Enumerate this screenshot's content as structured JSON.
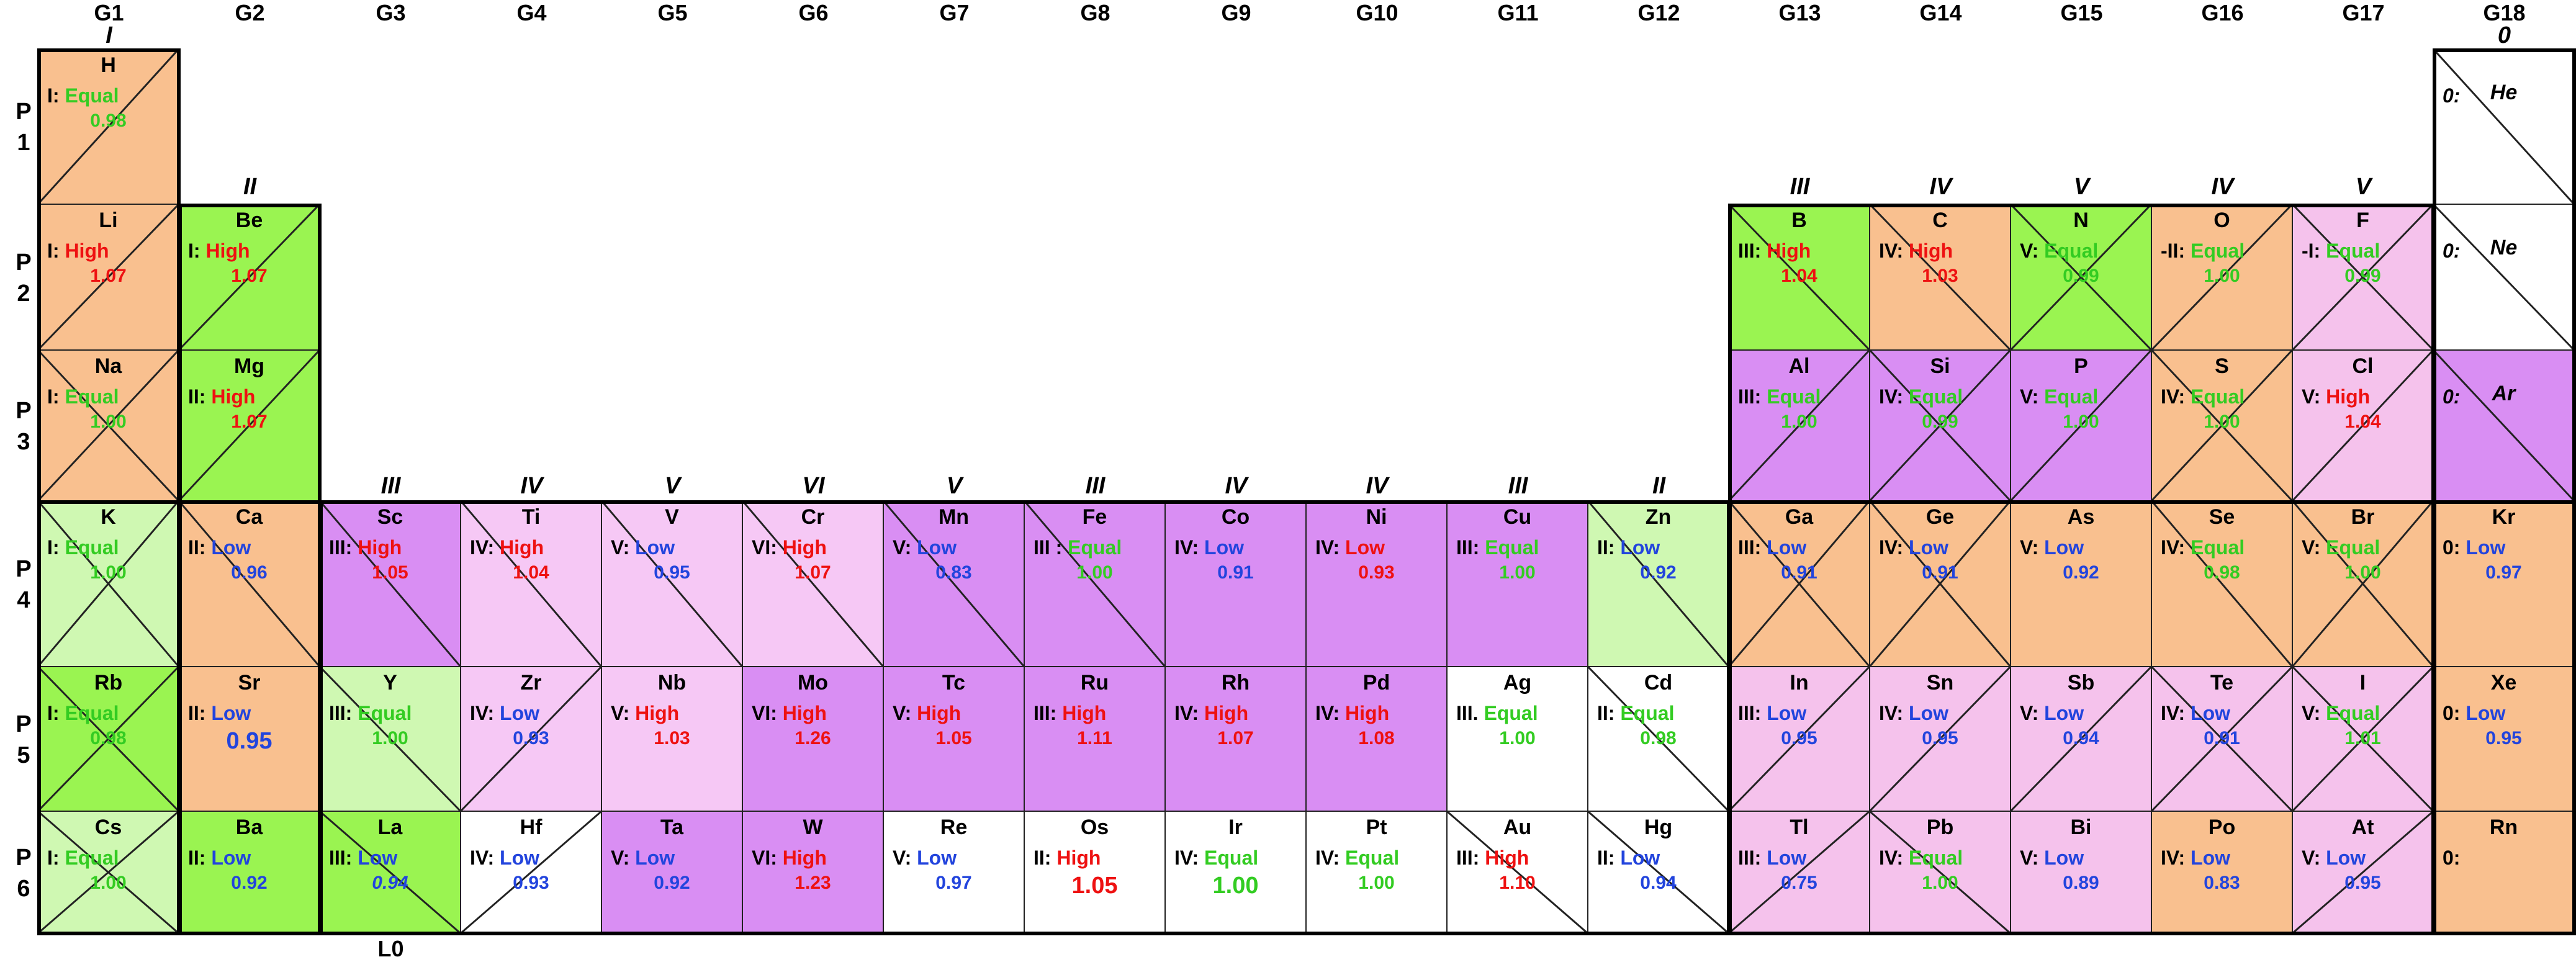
{
  "groups": [
    "G1",
    "G2",
    "G3",
    "G4",
    "G5",
    "G6",
    "G7",
    "G8",
    "G9",
    "G10",
    "G11",
    "G12",
    "G13",
    "G14",
    "G15",
    "G16",
    "G17",
    "G18"
  ],
  "group_numerals": [
    {
      "text": "I",
      "col": 0,
      "row": "top"
    },
    {
      "text": "II",
      "col": 1,
      "row": "p1"
    },
    {
      "text": "III",
      "col": 2,
      "row": "p3"
    },
    {
      "text": "IV",
      "col": 3,
      "row": "p3"
    },
    {
      "text": "V",
      "col": 4,
      "row": "p3"
    },
    {
      "text": "VI",
      "col": 5,
      "row": "p3"
    },
    {
      "text": "V",
      "col": 6,
      "row": "p3"
    },
    {
      "text": "III",
      "col": 7,
      "row": "p3"
    },
    {
      "text": "IV",
      "col": 8,
      "row": "p3"
    },
    {
      "text": "IV",
      "col": 9,
      "row": "p3"
    },
    {
      "text": "III",
      "col": 10,
      "row": "p3"
    },
    {
      "text": "II",
      "col": 11,
      "row": "p3"
    },
    {
      "text": "III",
      "col": 12,
      "row": "p1"
    },
    {
      "text": "IV",
      "col": 13,
      "row": "p1"
    },
    {
      "text": "V",
      "col": 14,
      "row": "p1"
    },
    {
      "text": "IV",
      "col": 15,
      "row": "p1"
    },
    {
      "text": "V",
      "col": 16,
      "row": "p1"
    },
    {
      "text": "0",
      "col": 17,
      "row": "top"
    }
  ],
  "periods": [
    {
      "label": [
        "P",
        "1"
      ]
    },
    {
      "label": [
        "P",
        "2"
      ]
    },
    {
      "label": [
        "P",
        "3"
      ]
    },
    {
      "label": [
        "P",
        "4"
      ]
    },
    {
      "label": [
        "P",
        "5"
      ]
    },
    {
      "label": [
        "P",
        "6"
      ]
    }
  ],
  "footer_label": "L0",
  "colors": {
    "orange": "#f9c08f",
    "green": "#9af451",
    "lightgreen": "#cff8b2",
    "purple": "#d98ef3",
    "pink": "#f5c2ec",
    "lightpink": "#f6c8f5",
    "white": "#ffffff",
    "high": "#ee1111",
    "low": "#2244dd",
    "equal": "#33cc22"
  },
  "elements": [
    {
      "sym": "H",
      "p": 0,
      "g": 0,
      "ox": "I:",
      "tag": "Equal",
      "val": "0.98",
      "bg": "orange",
      "x": "nw"
    },
    {
      "sym": "He",
      "p": 0,
      "g": 17,
      "ox": "0:",
      "tag": "",
      "val": "",
      "bg": "white",
      "x": "ne",
      "noble": true
    },
    {
      "sym": "Li",
      "p": 1,
      "g": 0,
      "ox": "I:",
      "tag": "High",
      "val": "1.07",
      "bg": "orange",
      "x": "nw"
    },
    {
      "sym": "Be",
      "p": 1,
      "g": 1,
      "ox": "I:",
      "tag": "High",
      "val": "1.07",
      "bg": "green",
      "x": "nw"
    },
    {
      "sym": "B",
      "p": 1,
      "g": 12,
      "ox": "III:",
      "tag": "High",
      "val": "1.04",
      "bg": "green",
      "x": "ne"
    },
    {
      "sym": "C",
      "p": 1,
      "g": 13,
      "ox": "IV:",
      "tag": "High",
      "val": "1.03",
      "bg": "orange",
      "x": "ne"
    },
    {
      "sym": "N",
      "p": 1,
      "g": 14,
      "ox": "V:",
      "tag": "Equal",
      "val": "0.99",
      "bg": "green",
      "x": "both"
    },
    {
      "sym": "O",
      "p": 1,
      "g": 15,
      "ox": "-II:",
      "tag": "Equal",
      "val": "1.00",
      "bg": "orange",
      "x": "nw"
    },
    {
      "sym": "F",
      "p": 1,
      "g": 16,
      "ox": "-I:",
      "tag": "Equal",
      "val": "0.99",
      "bg": "pink",
      "x": "both"
    },
    {
      "sym": "Ne",
      "p": 1,
      "g": 17,
      "ox": "0:",
      "tag": "",
      "val": "",
      "bg": "white",
      "x": "ne",
      "noble": true
    },
    {
      "sym": "Na",
      "p": 2,
      "g": 0,
      "ox": "I:",
      "tag": "Equal",
      "val": "1.00",
      "bg": "orange",
      "x": "both"
    },
    {
      "sym": "Mg",
      "p": 2,
      "g": 1,
      "ox": "II:",
      "tag": "High",
      "val": "1.07",
      "bg": "green",
      "x": "nw"
    },
    {
      "sym": "Al",
      "p": 2,
      "g": 12,
      "ox": "III:",
      "tag": "Equal",
      "val": "1.00",
      "bg": "purple",
      "x": "nw"
    },
    {
      "sym": "Si",
      "p": 2,
      "g": 13,
      "ox": "IV:",
      "tag": "Equal",
      "val": "0.99",
      "bg": "purple",
      "x": "both"
    },
    {
      "sym": "P",
      "p": 2,
      "g": 14,
      "ox": "V:",
      "tag": "Equal",
      "val": "1.00",
      "bg": "purple",
      "x": "nw"
    },
    {
      "sym": "S",
      "p": 2,
      "g": 15,
      "ox": "IV:",
      "tag": "Equal",
      "val": "1.00",
      "bg": "orange",
      "x": "both"
    },
    {
      "sym": "Cl",
      "p": 2,
      "g": 16,
      "ox": "V:",
      "tag": "High",
      "val": "1.04",
      "bg": "pink",
      "x": "nw"
    },
    {
      "sym": "Ar",
      "p": 2,
      "g": 17,
      "ox": "0:",
      "tag": "",
      "val": "",
      "bg": "purple",
      "x": "ne",
      "noble": true
    },
    {
      "sym": "K",
      "p": 3,
      "g": 0,
      "ox": "I:",
      "tag": "Equal",
      "val": "1.00",
      "bg": "lightgreen",
      "x": "both"
    },
    {
      "sym": "Ca",
      "p": 3,
      "g": 1,
      "ox": "II:",
      "tag": "Low",
      "val": "0.96",
      "bg": "orange",
      "x": "ne"
    },
    {
      "sym": "Sc",
      "p": 3,
      "g": 2,
      "ox": "III:",
      "tag": "High",
      "val": "1.05",
      "bg": "purple",
      "x": "ne"
    },
    {
      "sym": "Ti",
      "p": 3,
      "g": 3,
      "ox": "IV:",
      "tag": "High",
      "val": "1.04",
      "bg": "lightpink",
      "x": "ne"
    },
    {
      "sym": "V",
      "p": 3,
      "g": 4,
      "ox": "V:",
      "tag": "Low",
      "val": "0.95",
      "bg": "lightpink",
      "x": "ne"
    },
    {
      "sym": "Cr",
      "p": 3,
      "g": 5,
      "ox": "VI:",
      "tag": "High",
      "val": "1.07",
      "bg": "lightpink",
      "x": "ne"
    },
    {
      "sym": "Mn",
      "p": 3,
      "g": 6,
      "ox": "V:",
      "tag": "Low",
      "val": "0.83",
      "bg": "purple",
      "x": "ne"
    },
    {
      "sym": "Fe",
      "p": 3,
      "g": 7,
      "ox": "III :",
      "tag": "Equal",
      "val": "1.00",
      "bg": "purple",
      "x": "ne"
    },
    {
      "sym": "Co",
      "p": 3,
      "g": 8,
      "ox": "IV:",
      "tag": "Low",
      "val": "0.91",
      "bg": "purple",
      "x": ""
    },
    {
      "sym": "Ni",
      "p": 3,
      "g": 9,
      "ox": "IV:",
      "tag": "Low",
      "val": "0.93",
      "bg": "purple",
      "x": "",
      "lowred": true
    },
    {
      "sym": "Cu",
      "p": 3,
      "g": 10,
      "ox": "III:",
      "tag": "Equal",
      "val": "1.00",
      "bg": "purple",
      "x": ""
    },
    {
      "sym": "Zn",
      "p": 3,
      "g": 11,
      "ox": "II:",
      "tag": "Low",
      "val": "0.92",
      "bg": "lightgreen",
      "x": "ne"
    },
    {
      "sym": "Ga",
      "p": 3,
      "g": 12,
      "ox": "III:",
      "tag": "Low",
      "val": "0.91",
      "bg": "orange",
      "x": "both"
    },
    {
      "sym": "Ge",
      "p": 3,
      "g": 13,
      "ox": "IV:",
      "tag": "Low",
      "val": "0.91",
      "bg": "orange",
      "x": "both"
    },
    {
      "sym": "As",
      "p": 3,
      "g": 14,
      "ox": "V:",
      "tag": "Low",
      "val": "0.92",
      "bg": "orange",
      "x": ""
    },
    {
      "sym": "Se",
      "p": 3,
      "g": 15,
      "ox": "IV:",
      "tag": "Equal",
      "val": "0.98",
      "bg": "orange",
      "x": "ne"
    },
    {
      "sym": "Br",
      "p": 3,
      "g": 16,
      "ox": "V:",
      "tag": "Equal",
      "val": "1.00",
      "bg": "orange",
      "x": "both"
    },
    {
      "sym": "Kr",
      "p": 3,
      "g": 17,
      "ox": "0:",
      "tag": "Low",
      "val": "0.97",
      "bg": "orange",
      "x": ""
    },
    {
      "sym": "Rb",
      "p": 4,
      "g": 0,
      "ox": "I:",
      "tag": "Equal",
      "val": "0.98",
      "bg": "green",
      "x": "both"
    },
    {
      "sym": "Sr",
      "p": 4,
      "g": 1,
      "ox": "II:",
      "tag": "Low",
      "val": "0.95",
      "bg": "orange",
      "x": "",
      "big": true
    },
    {
      "sym": "Y",
      "p": 4,
      "g": 2,
      "ox": "III:",
      "tag": "Equal",
      "val": "1.00",
      "bg": "lightgreen",
      "x": "ne"
    },
    {
      "sym": "Zr",
      "p": 4,
      "g": 3,
      "ox": "IV:",
      "tag": "Low",
      "val": "0.93",
      "bg": "lightpink",
      "x": "nw"
    },
    {
      "sym": "Nb",
      "p": 4,
      "g": 4,
      "ox": "V:",
      "tag": "High",
      "val": "1.03",
      "bg": "lightpink",
      "x": ""
    },
    {
      "sym": "Mo",
      "p": 4,
      "g": 5,
      "ox": "VI:",
      "tag": "High",
      "val": "1.26",
      "bg": "purple",
      "x": ""
    },
    {
      "sym": "Tc",
      "p": 4,
      "g": 6,
      "ox": "V:",
      "tag": "High",
      "val": "1.05",
      "bg": "purple",
      "x": ""
    },
    {
      "sym": "Ru",
      "p": 4,
      "g": 7,
      "ox": "III:",
      "tag": "High",
      "val": "1.11",
      "bg": "purple",
      "x": ""
    },
    {
      "sym": "Rh",
      "p": 4,
      "g": 8,
      "ox": "IV:",
      "tag": "High",
      "val": "1.07",
      "bg": "purple",
      "x": ""
    },
    {
      "sym": "Pd",
      "p": 4,
      "g": 9,
      "ox": "IV:",
      "tag": "High",
      "val": "1.08",
      "bg": "purple",
      "x": ""
    },
    {
      "sym": "Ag",
      "p": 4,
      "g": 10,
      "ox": "III.",
      "tag": "Equal",
      "val": "1.00",
      "bg": "white",
      "x": ""
    },
    {
      "sym": "Cd",
      "p": 4,
      "g": 11,
      "ox": "II:",
      "tag": "Equal",
      "val": "0.98",
      "bg": "white",
      "x": "ne"
    },
    {
      "sym": "In",
      "p": 4,
      "g": 12,
      "ox": "III:",
      "tag": "Low",
      "val": "0.95",
      "bg": "pink",
      "x": "nw"
    },
    {
      "sym": "Sn",
      "p": 4,
      "g": 13,
      "ox": "IV:",
      "tag": "Low",
      "val": "0.95",
      "bg": "pink",
      "x": "nw"
    },
    {
      "sym": "Sb",
      "p": 4,
      "g": 14,
      "ox": "V:",
      "tag": "Low",
      "val": "0.94",
      "bg": "pink",
      "x": "nw"
    },
    {
      "sym": "Te",
      "p": 4,
      "g": 15,
      "ox": "IV:",
      "tag": "Low",
      "val": "0.91",
      "bg": "pink",
      "x": "both"
    },
    {
      "sym": "I",
      "p": 4,
      "g": 16,
      "ox": "V:",
      "tag": "Equal",
      "val": "1.01",
      "bg": "pink",
      "x": "both"
    },
    {
      "sym": "Xe",
      "p": 4,
      "g": 17,
      "ox": "0:",
      "tag": "Low",
      "val": "0.95",
      "bg": "orange",
      "x": ""
    },
    {
      "sym": "Cs",
      "p": 5,
      "g": 0,
      "ox": "I:",
      "tag": "Equal",
      "val": "1.00",
      "bg": "lightgreen",
      "x": "both"
    },
    {
      "sym": "Ba",
      "p": 5,
      "g": 1,
      "ox": "II:",
      "tag": "Low",
      "val": "0.92",
      "bg": "green",
      "x": ""
    },
    {
      "sym": "La",
      "p": 5,
      "g": 2,
      "ox": "III:",
      "tag": "Low",
      "val": "0.94",
      "bg": "green",
      "x": "ne",
      "italicval": true
    },
    {
      "sym": "Hf",
      "p": 5,
      "g": 3,
      "ox": "IV:",
      "tag": "Low",
      "val": "0.93",
      "bg": "white",
      "x": "nw"
    },
    {
      "sym": "Ta",
      "p": 5,
      "g": 4,
      "ox": "V:",
      "tag": "Low",
      "val": "0.92",
      "bg": "purple",
      "x": ""
    },
    {
      "sym": "W",
      "p": 5,
      "g": 5,
      "ox": "VI:",
      "tag": "High",
      "val": "1.23",
      "bg": "purple",
      "x": ""
    },
    {
      "sym": "Re",
      "p": 5,
      "g": 6,
      "ox": "V:",
      "tag": "Low",
      "val": "0.97",
      "bg": "white",
      "x": ""
    },
    {
      "sym": "Os",
      "p": 5,
      "g": 7,
      "ox": "II:",
      "tag": "High",
      "val": "1.05",
      "bg": "white",
      "x": "",
      "big": true
    },
    {
      "sym": "Ir",
      "p": 5,
      "g": 8,
      "ox": "IV:",
      "tag": "Equal",
      "val": "1.00",
      "bg": "white",
      "x": "",
      "big": true
    },
    {
      "sym": "Pt",
      "p": 5,
      "g": 9,
      "ox": "IV:",
      "tag": "Equal",
      "val": "1.00",
      "bg": "white",
      "x": ""
    },
    {
      "sym": "Au",
      "p": 5,
      "g": 10,
      "ox": "III:",
      "tag": "High",
      "val": "1.10",
      "bg": "white",
      "x": "ne"
    },
    {
      "sym": "Hg",
      "p": 5,
      "g": 11,
      "ox": "II:",
      "tag": "Low",
      "val": "0.94",
      "bg": "white",
      "x": "ne"
    },
    {
      "sym": "Tl",
      "p": 5,
      "g": 12,
      "ox": "III:",
      "tag": "Low",
      "val": "0.75",
      "bg": "pink",
      "x": "nw"
    },
    {
      "sym": "Pb",
      "p": 5,
      "g": 13,
      "ox": "IV:",
      "tag": "Equal",
      "val": "1.00",
      "bg": "pink",
      "x": "ne"
    },
    {
      "sym": "Bi",
      "p": 5,
      "g": 14,
      "ox": "V:",
      "tag": "Low",
      "val": "0.89",
      "bg": "pink",
      "x": ""
    },
    {
      "sym": "Po",
      "p": 5,
      "g": 15,
      "ox": "IV:",
      "tag": "Low",
      "val": "0.83",
      "bg": "orange",
      "x": ""
    },
    {
      "sym": "At",
      "p": 5,
      "g": 16,
      "ox": "V:",
      "tag": "Low",
      "val": "0.95",
      "bg": "pink",
      "x": "nw"
    },
    {
      "sym": "Rn",
      "p": 5,
      "g": 17,
      "ox": "0:",
      "tag": "",
      "val": "",
      "bg": "orange",
      "x": ""
    }
  ]
}
